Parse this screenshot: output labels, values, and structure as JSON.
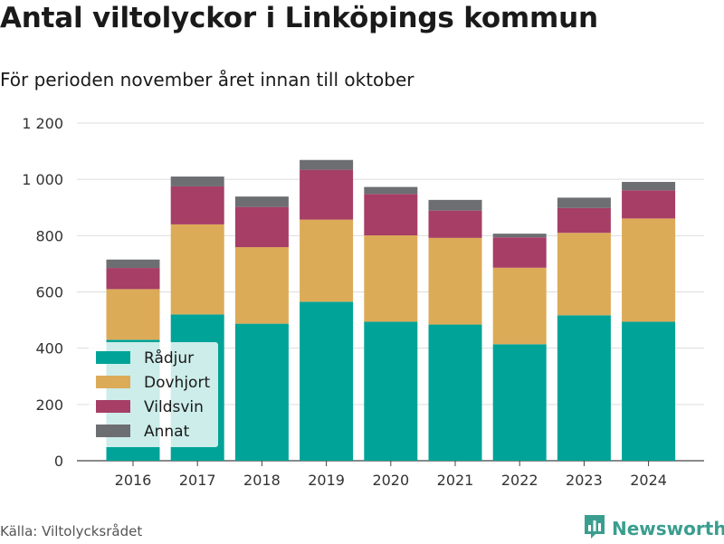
{
  "header": {
    "title": "Antal viltolyckor i Linköpings kommun",
    "subtitle": "För perioden november året innan till oktober"
  },
  "footer": {
    "source": "Källa: Viltolycksrådet",
    "brand": "Newsworthy",
    "brand_icon": "bar-chart-icon"
  },
  "colors": {
    "Rådjur": "#00a398",
    "Dovhjort": "#dcab58",
    "Vildsvin": "#a63e66",
    "Annat": "#6d6e71",
    "grid": "#dddddd",
    "brand": "#3a9e8f"
  },
  "chart_data": {
    "type": "bar",
    "stacked": true,
    "categories": [
      "2016",
      "2017",
      "2018",
      "2019",
      "2020",
      "2021",
      "2022",
      "2023",
      "2024"
    ],
    "series": [
      {
        "name": "Rådjur",
        "values": [
          430,
          520,
          487,
          565,
          494,
          484,
          414,
          517,
          494
        ]
      },
      {
        "name": "Dovhjort",
        "values": [
          180,
          320,
          272,
          292,
          307,
          308,
          272,
          293,
          367
        ]
      },
      {
        "name": "Vildsvin",
        "values": [
          75,
          135,
          143,
          177,
          147,
          97,
          108,
          88,
          100
        ]
      },
      {
        "name": "Annat",
        "values": [
          30,
          35,
          37,
          35,
          25,
          38,
          13,
          37,
          30
        ]
      }
    ],
    "ylim": [
      0,
      1200
    ],
    "yticks": [
      0,
      200,
      400,
      600,
      800,
      1000,
      1200
    ],
    "ytick_labels": [
      "0",
      "200",
      "400",
      "600",
      "800",
      "1 000",
      "1 200"
    ],
    "grid": true,
    "legend_position": "bottom-left",
    "xlabel": "",
    "ylabel": ""
  }
}
